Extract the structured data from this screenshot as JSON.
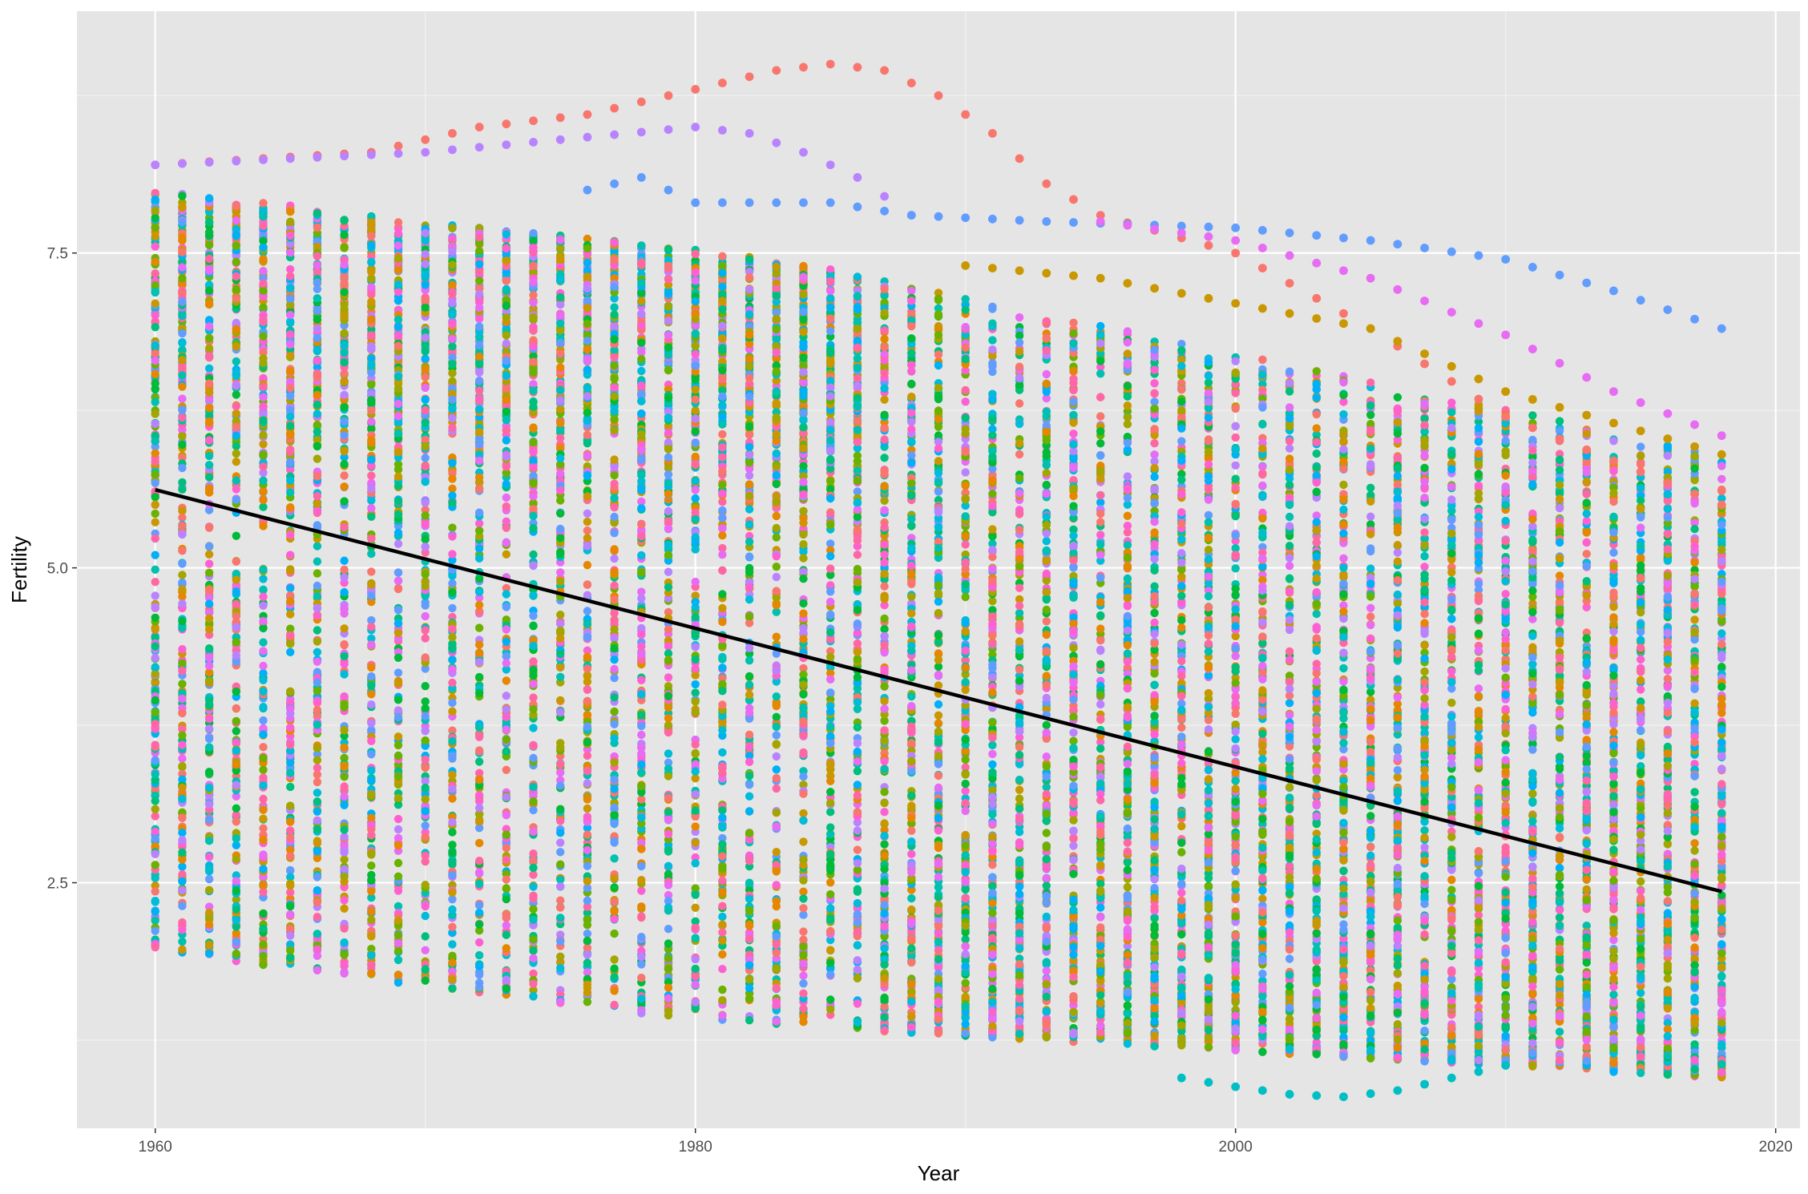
{
  "chart_data": {
    "type": "scatter",
    "title": "",
    "xlabel": "Year",
    "ylabel": "Fertility",
    "xlim": [
      1957.1,
      2020.9
    ],
    "ylim": [
      0.55,
      9.42
    ],
    "x_ticks": [
      1960,
      1980,
      2000,
      2020
    ],
    "x_tick_labels": [
      "1960",
      "1980",
      "2000",
      "2020"
    ],
    "y_ticks": [
      2.5,
      5.0,
      7.5
    ],
    "y_tick_labels": [
      "2.5",
      "5.0",
      "7.5"
    ],
    "grid": true,
    "legend": "none",
    "colors": {
      "panel_background": "#e5e5e5",
      "grid": "#ffffff",
      "trend_line": "#000000",
      "point_palette": [
        "#f8766d",
        "#e58700",
        "#c99800",
        "#a3a500",
        "#6bb100",
        "#00ba38",
        "#00bf7d",
        "#00c0af",
        "#00bcd8",
        "#00b0f6",
        "#619cff",
        "#b983ff",
        "#e76bf3",
        "#fd61d1",
        "#ff67a4"
      ]
    },
    "series": [
      {
        "type": "scatter",
        "points_per_year": 230,
        "years": [
          1960,
          2018
        ],
        "highlighted_trajectories": [
          {
            "color": "#f8766d",
            "x": [
              1960,
              1968,
              1972,
              1976,
              1980,
              1983,
              1985,
              1987,
              1989,
              1991,
              1993,
              1995,
              2000,
              2005,
              2010,
              2018
            ],
            "y": [
              8.2,
              8.3,
              8.5,
              8.6,
              8.8,
              8.95,
              9.0,
              8.95,
              8.75,
              8.45,
              8.05,
              7.8,
              7.5,
              6.9,
              6.2,
              5.5
            ]
          },
          {
            "color": "#b983ff",
            "x": [
              1960,
              1970,
              1975,
              1980,
              1982,
              1984,
              1986,
              1988
            ],
            "y": [
              8.2,
              8.3,
              8.4,
              8.5,
              8.45,
              8.3,
              8.1,
              7.8
            ]
          },
          {
            "color": "#619cff",
            "x": [
              1976,
              1978,
              1980,
              1983,
              1985,
              1988,
              1993,
              2000,
              2005,
              2010,
              2014,
              2018
            ],
            "y": [
              8.0,
              8.1,
              7.9,
              7.9,
              7.9,
              7.8,
              7.75,
              7.7,
              7.6,
              7.45,
              7.2,
              6.9
            ]
          },
          {
            "color": "#e76bf3",
            "x": [
              1995,
              2000,
              2005,
              2010,
              2014,
              2018
            ],
            "y": [
              7.75,
              7.6,
              7.3,
              6.85,
              6.4,
              6.05
            ]
          },
          {
            "color": "#c99800",
            "x": [
              1990,
              1995,
              2000,
              2005,
              2010,
              2018
            ],
            "y": [
              7.4,
              7.3,
              7.1,
              6.9,
              6.4,
              5.9
            ]
          },
          {
            "color": "#00bfc4",
            "x": [
              1998,
              2000,
              2002,
              2004,
              2006,
              2008,
              2010
            ],
            "y": [
              0.95,
              0.88,
              0.82,
              0.8,
              0.85,
              0.95,
              1.05
            ]
          }
        ]
      },
      {
        "type": "line",
        "name": "",
        "x": [
          1960,
          2018
        ],
        "y": [
          5.62,
          2.43
        ]
      }
    ]
  }
}
